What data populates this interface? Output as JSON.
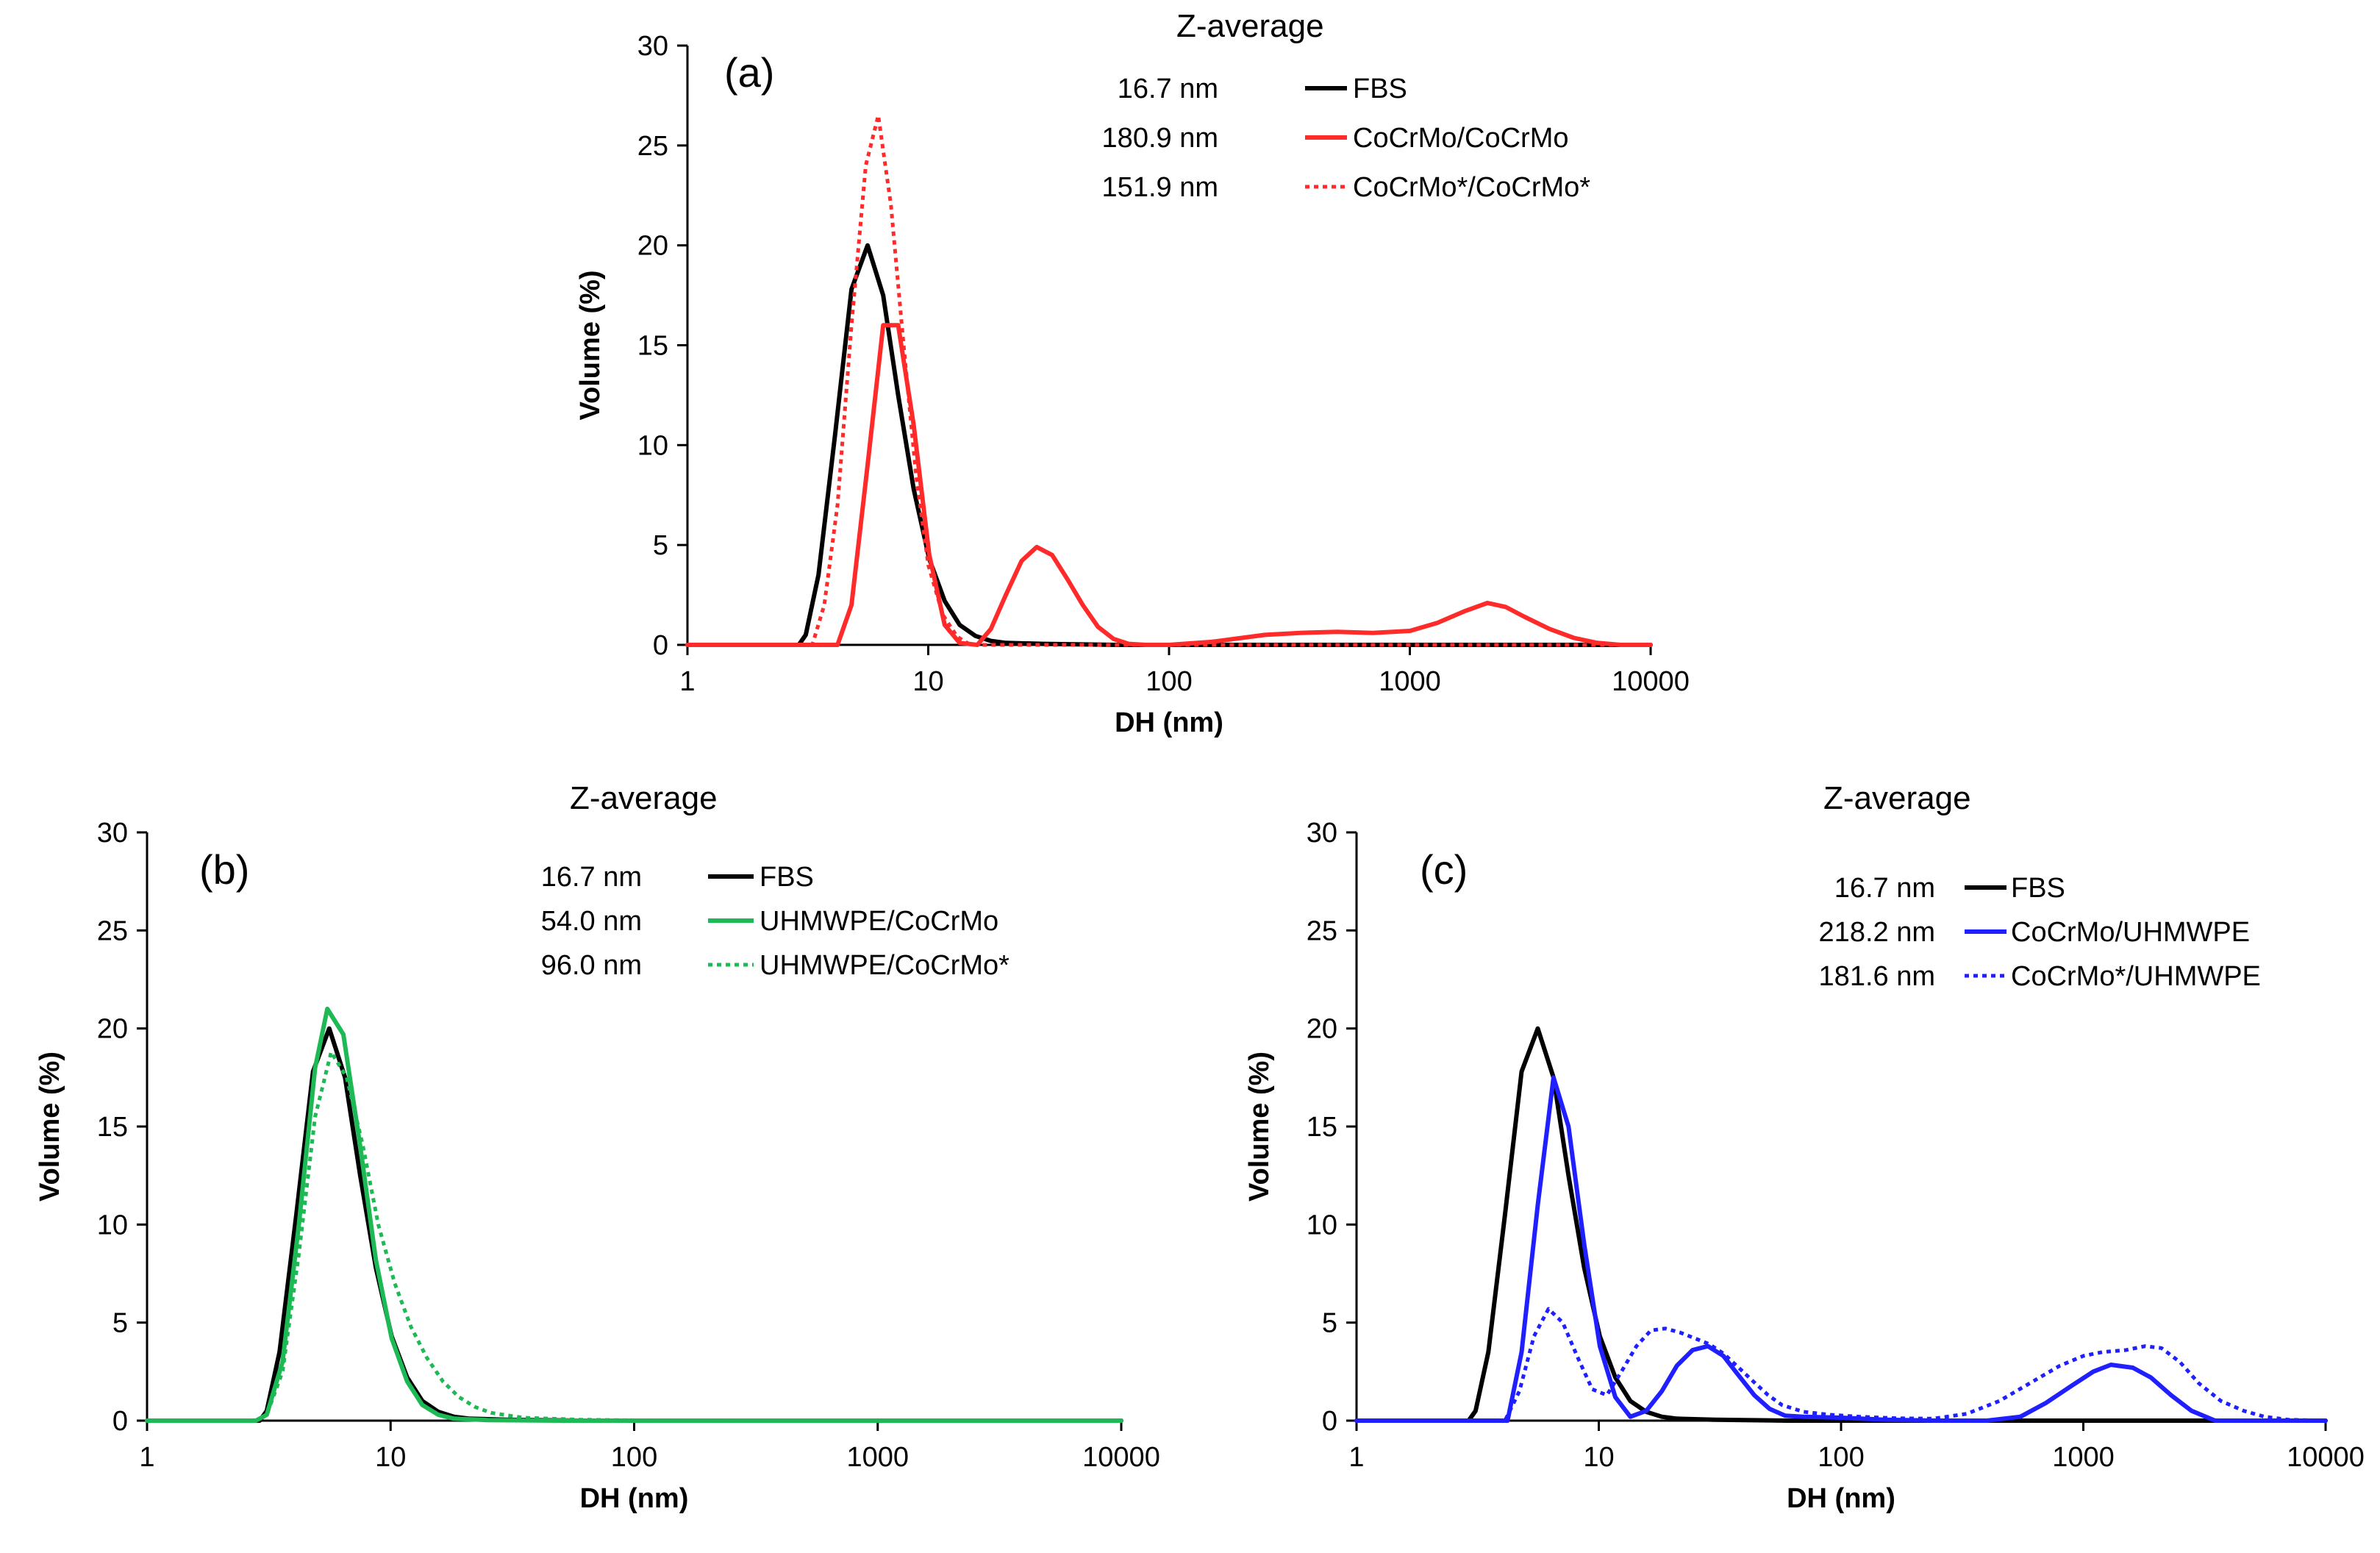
{
  "figure": "DLS volume distributions",
  "colors": {
    "FBS": "#000000",
    "red": "#ff2a2a",
    "green": "#1db954",
    "blue": "#1f1fff"
  },
  "chart_data": [
    {
      "panel": "a",
      "label": "(a)",
      "type": "line",
      "xscale": "log",
      "xlabel": "DH (nm)",
      "ylabel": "Volume (%)",
      "xlim": [
        1,
        10000
      ],
      "ylim": [
        0,
        30
      ],
      "xticks": [
        "1",
        "10",
        "100",
        "1000",
        "10000"
      ],
      "yticks": [
        "0",
        "5",
        "10",
        "15",
        "20",
        "25",
        "30"
      ],
      "legend_title": "Z-average",
      "series": [
        {
          "name": "FBS",
          "z_average": "16.7 nm",
          "color": "#000000",
          "style": "solid",
          "x": [
            1,
            2.9,
            3.1,
            3.5,
            4.1,
            4.8,
            5.6,
            6.5,
            7.5,
            8.7,
            10.1,
            11.7,
            13.5,
            15.7,
            18.2,
            21,
            30,
            60,
            10000
          ],
          "y": [
            0,
            0,
            0.5,
            3.5,
            10.5,
            17.8,
            20,
            17.5,
            12.5,
            7.8,
            4.3,
            2.2,
            1.0,
            0.45,
            0.2,
            0.1,
            0.05,
            0,
            0
          ]
        },
        {
          "name": "CoCrMo/CoCrMo",
          "z_average": "180.9 nm",
          "color": "#ff2a2a",
          "style": "solid",
          "x": [
            1,
            4.2,
            4.8,
            5.6,
            6.5,
            7.5,
            8.7,
            10.1,
            11.7,
            13.5,
            16,
            18.2,
            21,
            24.4,
            28.2,
            32.7,
            37.8,
            43.8,
            50.7,
            58.8,
            68,
            80,
            100,
            150,
            250,
            350,
            500,
            700,
            1000,
            1300,
            1700,
            2100,
            2500,
            3000,
            3800,
            4800,
            6000,
            7500,
            10000
          ],
          "y": [
            0,
            0,
            2,
            9,
            16,
            16,
            11,
            4.5,
            1,
            0.1,
            0,
            0.8,
            2.5,
            4.2,
            4.9,
            4.5,
            3.3,
            2.0,
            0.9,
            0.3,
            0.05,
            0,
            0,
            0.15,
            0.5,
            0.6,
            0.65,
            0.6,
            0.7,
            1.1,
            1.7,
            2.1,
            1.9,
            1.4,
            0.8,
            0.35,
            0.1,
            0,
            0
          ]
        },
        {
          "name": "CoCrMo*/CoCrMo*",
          "z_average": "151.9 nm",
          "color": "#ff2a2a",
          "style": "dotted",
          "x": [
            1,
            3.3,
            3.7,
            4.2,
            4.8,
            5.5,
            6.2,
            7.0,
            7.9,
            8.9,
            10,
            11.5,
            13.2,
            15,
            10000
          ],
          "y": [
            0,
            0,
            2,
            7,
            16,
            24,
            26.5,
            22,
            15,
            8.5,
            4,
            1.5,
            0.4,
            0,
            0
          ]
        }
      ]
    },
    {
      "panel": "b",
      "label": "(b)",
      "type": "line",
      "xscale": "log",
      "xlabel": "DH (nm)",
      "ylabel": "Volume (%)",
      "xlim": [
        1,
        10000
      ],
      "ylim": [
        0,
        30
      ],
      "xticks": [
        "1",
        "10",
        "100",
        "1000",
        "10000"
      ],
      "yticks": [
        "0",
        "5",
        "10",
        "15",
        "20",
        "25",
        "30"
      ],
      "legend_title": "Z-average",
      "series": [
        {
          "name": "FBS",
          "z_average": "16.7 nm",
          "color": "#000000",
          "style": "solid",
          "x": [
            1,
            2.9,
            3.1,
            3.5,
            4.1,
            4.8,
            5.6,
            6.5,
            7.5,
            8.7,
            10.1,
            11.7,
            13.5,
            15.7,
            18.2,
            21,
            30,
            60,
            10000
          ],
          "y": [
            0,
            0,
            0.5,
            3.5,
            10.5,
            17.8,
            20,
            17.5,
            12.5,
            7.8,
            4.3,
            2.2,
            1.0,
            0.45,
            0.2,
            0.1,
            0.05,
            0,
            0
          ]
        },
        {
          "name": "UHMWPE/CoCrMo",
          "z_average": "54.0 nm",
          "color": "#1db954",
          "style": "solid",
          "x": [
            1,
            2.8,
            3.1,
            3.6,
            4.2,
            4.9,
            5.5,
            6.4,
            7.5,
            8.7,
            10.1,
            11.7,
            13.5,
            15.7,
            18.2,
            25,
            50,
            10000
          ],
          "y": [
            0,
            0,
            0.3,
            3,
            10,
            18,
            21,
            19.7,
            14,
            8.2,
            4.2,
            2.0,
            0.8,
            0.3,
            0.1,
            0.03,
            0,
            0
          ]
        },
        {
          "name": "UHMWPE/CoCrMo*",
          "z_average": "96.0 nm",
          "color": "#1db954",
          "style": "dotted",
          "x": [
            1,
            2.8,
            3.1,
            3.6,
            4.2,
            4.9,
            5.7,
            6.6,
            7.7,
            8.9,
            10.4,
            12.1,
            14.1,
            16.4,
            19.1,
            22.2,
            25.8,
            35,
            60,
            100,
            300,
            10000
          ],
          "y": [
            0,
            0,
            0.3,
            2.5,
            8.5,
            15.5,
            18.8,
            17.5,
            14,
            10,
            7,
            4.8,
            3.2,
            2.0,
            1.2,
            0.7,
            0.4,
            0.15,
            0.05,
            0.02,
            0,
            0
          ]
        }
      ]
    },
    {
      "panel": "c",
      "label": "(c)",
      "type": "line",
      "xscale": "log",
      "xlabel": "DH (nm)",
      "ylabel": "Volume (%)",
      "xlim": [
        1,
        10000
      ],
      "ylim": [
        0,
        30
      ],
      "xticks": [
        "1",
        "10",
        "100",
        "1000",
        "10000"
      ],
      "yticks": [
        "0",
        "5",
        "10",
        "15",
        "20",
        "25",
        "30"
      ],
      "legend_title": "Z-average",
      "series": [
        {
          "name": "FBS",
          "z_average": "16.7 nm",
          "color": "#000000",
          "style": "solid",
          "x": [
            1,
            2.9,
            3.1,
            3.5,
            4.1,
            4.8,
            5.6,
            6.5,
            7.5,
            8.7,
            10.1,
            11.7,
            13.5,
            15.7,
            18.2,
            21,
            30,
            60,
            10000
          ],
          "y": [
            0,
            0,
            0.5,
            3.5,
            10.5,
            17.8,
            20,
            17.5,
            12.5,
            7.8,
            4.3,
            2.2,
            1.0,
            0.45,
            0.2,
            0.1,
            0.05,
            0,
            0
          ]
        },
        {
          "name": "CoCrMo/UHMWPE",
          "z_average": "218.2 nm",
          "color": "#1f1fff",
          "style": "solid",
          "x": [
            1,
            4.2,
            4.8,
            5.6,
            6.5,
            7.5,
            8.7,
            10.1,
            11.7,
            13.5,
            15.7,
            18.2,
            21,
            24.4,
            28.2,
            32.7,
            37.8,
            43.8,
            50.7,
            58.8,
            70,
            100,
            150,
            250,
            400,
            550,
            700,
            900,
            1100,
            1300,
            1600,
            1900,
            2300,
            2800,
            3500,
            10000
          ],
          "y": [
            0,
            0,
            3.5,
            11,
            17.5,
            15,
            9,
            3.8,
            1.2,
            0.2,
            0.5,
            1.5,
            2.8,
            3.6,
            3.8,
            3.3,
            2.3,
            1.3,
            0.6,
            0.25,
            0.2,
            0.15,
            0.05,
            0,
            0,
            0.2,
            0.9,
            1.8,
            2.5,
            2.85,
            2.7,
            2.2,
            1.3,
            0.5,
            0,
            0
          ]
        },
        {
          "name": "CoCrMo*/UHMWPE",
          "z_average": "181.6 nm",
          "color": "#1f1fff",
          "style": "dotted",
          "x": [
            1,
            4.1,
            4.7,
            5.4,
            6.2,
            7.1,
            8.2,
            9.4,
            10.8,
            12.4,
            14.3,
            16.4,
            18.8,
            21.6,
            24.9,
            28.6,
            32.9,
            37.8,
            43.4,
            50,
            57,
            70,
            90,
            120,
            170,
            240,
            330,
            450,
            600,
            800,
            1000,
            1200,
            1500,
            1800,
            2100,
            2500,
            3000,
            3700,
            4600,
            5600,
            7000,
            10000
          ],
          "y": [
            0,
            0,
            1.5,
            4.3,
            5.7,
            5.0,
            3.2,
            1.6,
            1.3,
            2.5,
            3.8,
            4.6,
            4.7,
            4.5,
            4.2,
            3.9,
            3.4,
            2.7,
            2.0,
            1.3,
            0.8,
            0.45,
            0.3,
            0.2,
            0.12,
            0.1,
            0.35,
            1.0,
            1.9,
            2.8,
            3.3,
            3.5,
            3.6,
            3.8,
            3.7,
            3.0,
            1.9,
            1.0,
            0.5,
            0.2,
            0.05,
            0
          ]
        }
      ]
    }
  ]
}
